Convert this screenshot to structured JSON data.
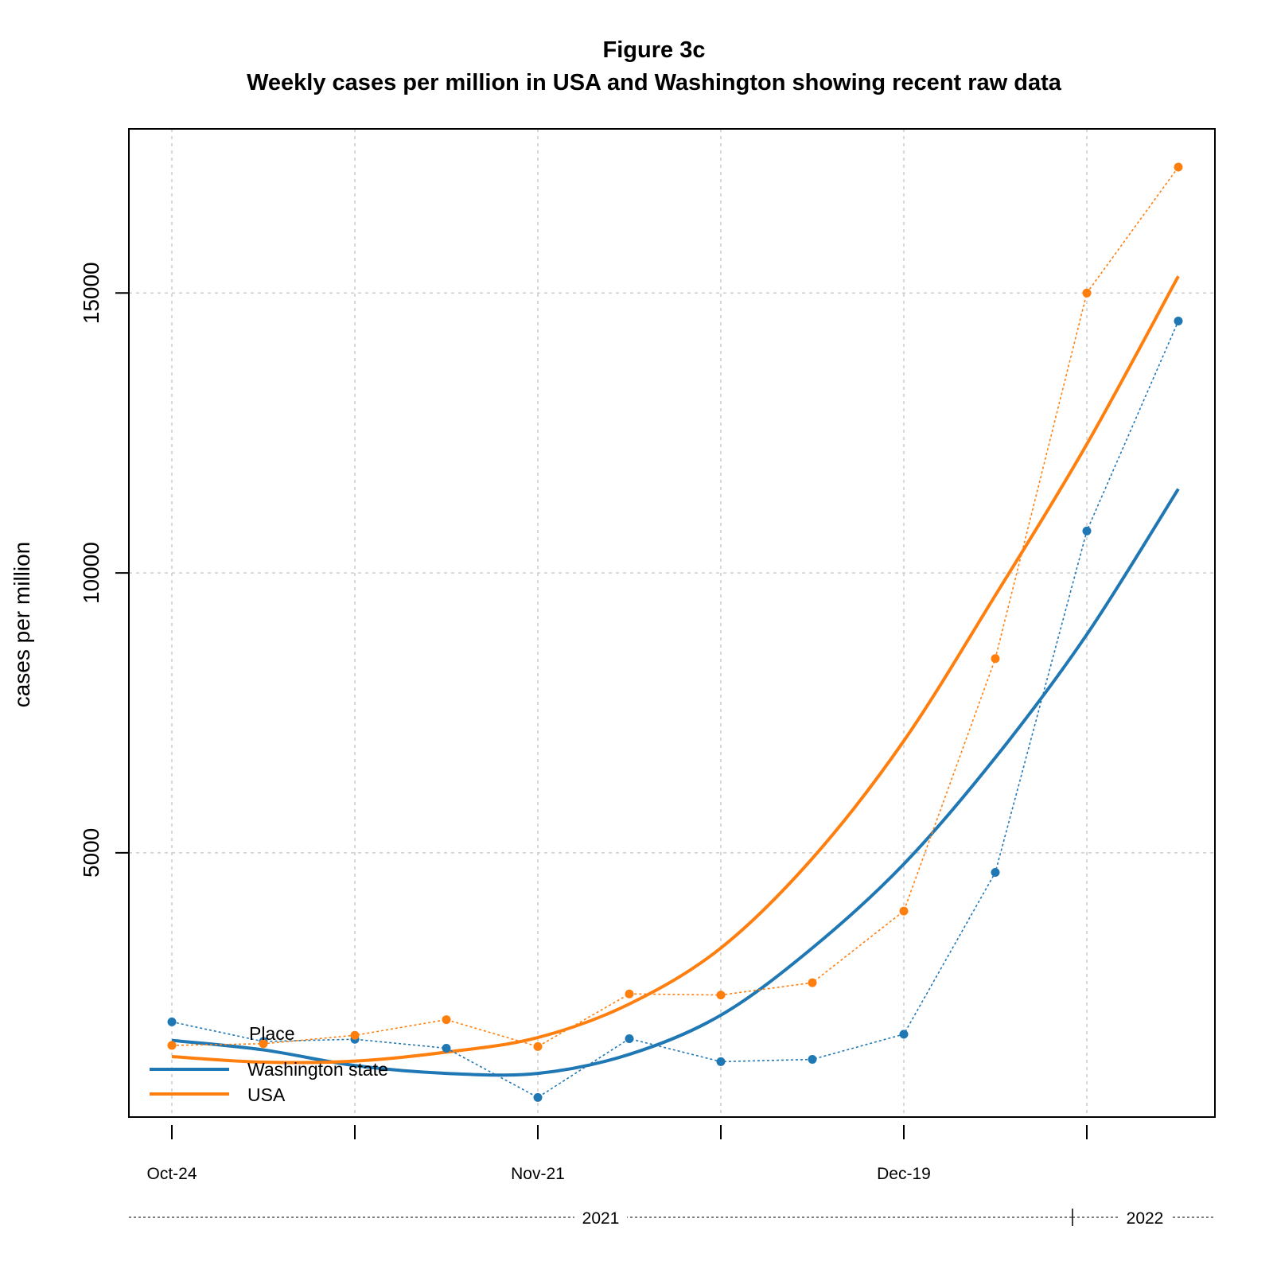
{
  "chart_data": {
    "type": "line",
    "title": "Figure 3c",
    "subtitle": "Weekly cases per million in USA and Washington showing recent raw data",
    "xlabel": "",
    "ylabel": "cases per million",
    "x": [
      "2021-10-24",
      "2021-10-31",
      "2021-11-07",
      "2021-11-14",
      "2021-11-21",
      "2021-11-28",
      "2021-12-05",
      "2021-12-12",
      "2021-12-19",
      "2021-12-26",
      "2022-01-02",
      "2022-01-09"
    ],
    "xtick_labels": [
      "Oct-24",
      "Nov-21",
      "Dec-19"
    ],
    "year_labels": [
      "2021",
      "2022"
    ],
    "yticks": [
      5000,
      10000,
      15000
    ],
    "ylim": [
      550,
      17250
    ],
    "grid": true,
    "legend": {
      "title": "Place",
      "placement": "bottom-left",
      "entries": [
        "Washington state",
        "USA"
      ]
    },
    "series": [
      {
        "name": "Washington state",
        "color": "#1f77b4",
        "raw": [
          1980,
          1630,
          1670,
          1510,
          630,
          1680,
          1270,
          1310,
          1760,
          4650,
          10750,
          14500
        ],
        "smooth": [
          1650,
          1480,
          1200,
          1060,
          1060,
          1400,
          2100,
          3300,
          4800,
          6700,
          8900,
          11500
        ]
      },
      {
        "name": "USA",
        "color": "#ff7f0e",
        "raw": [
          1560,
          1590,
          1740,
          2020,
          1540,
          2480,
          2460,
          2680,
          3960,
          8470,
          15000,
          17250
        ],
        "smooth": [
          1360,
          1260,
          1280,
          1440,
          1700,
          2300,
          3300,
          4900,
          7000,
          9600,
          12300,
          15300
        ]
      }
    ]
  }
}
